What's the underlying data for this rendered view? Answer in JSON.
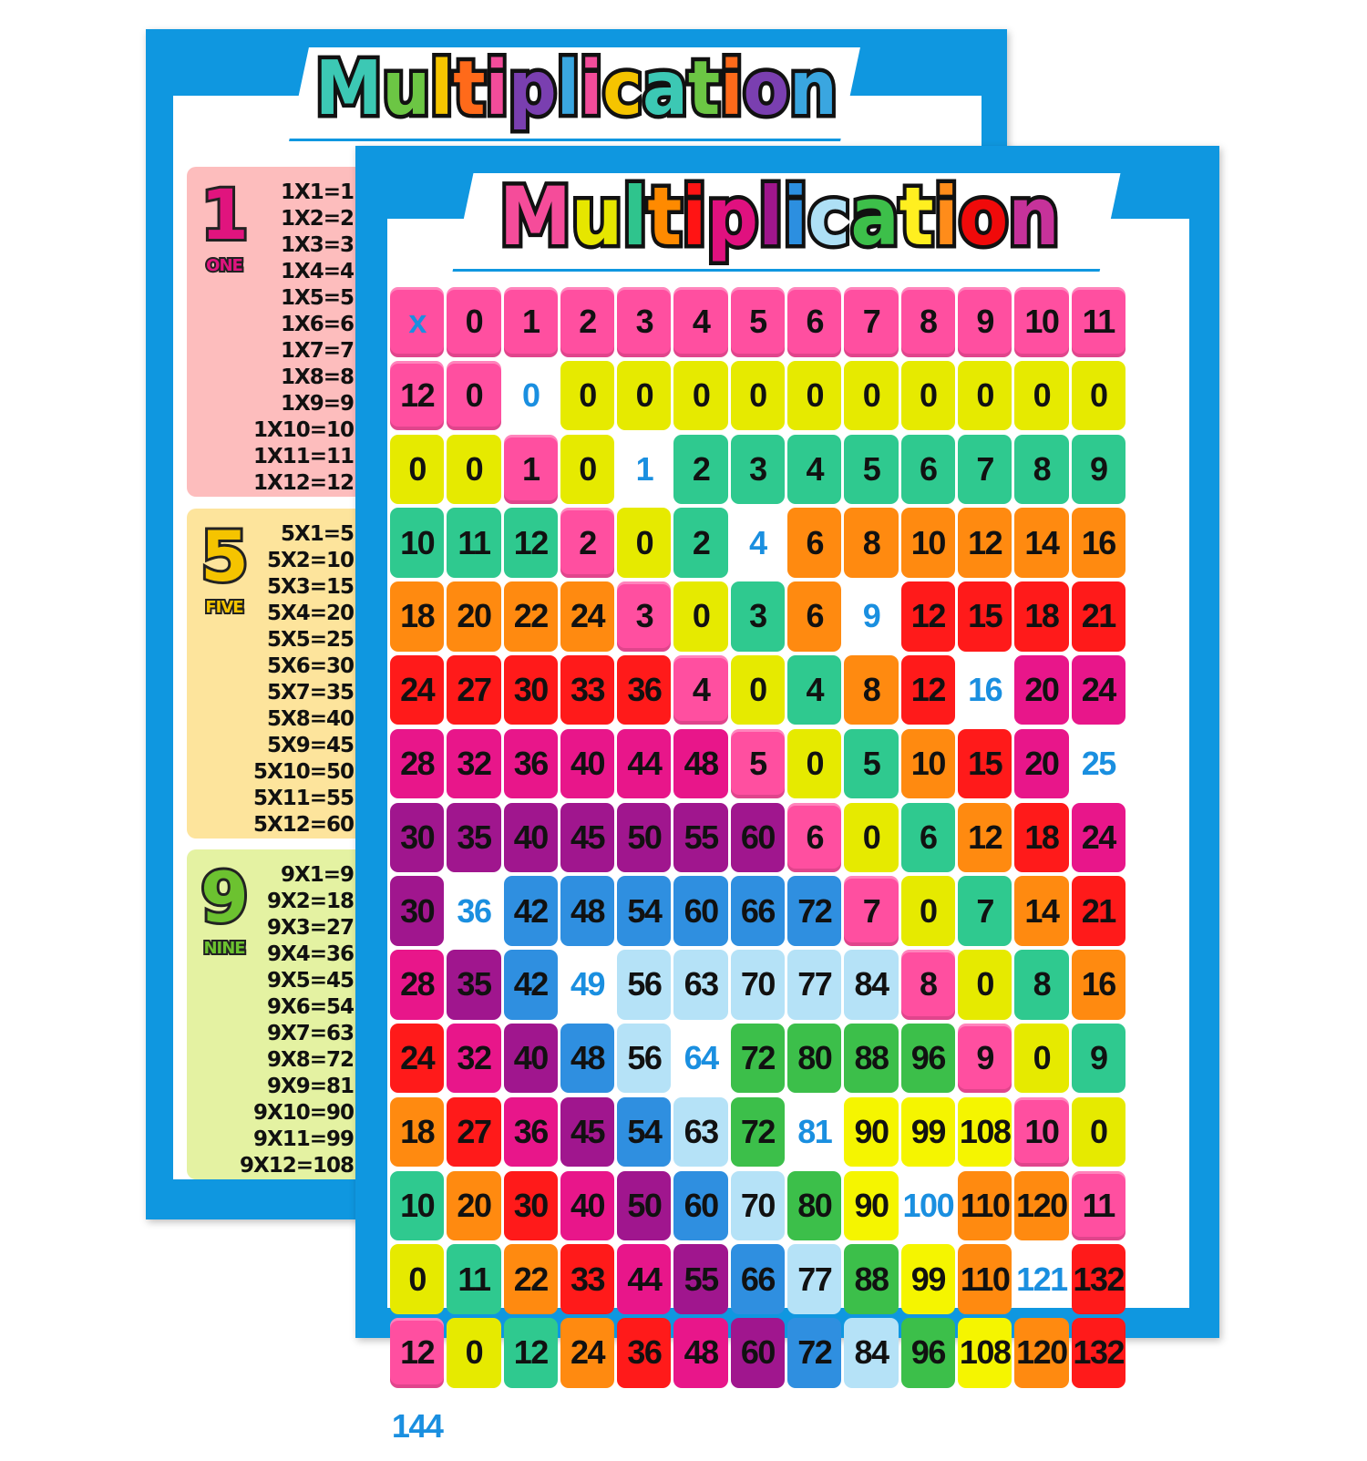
{
  "back_poster": {
    "title": "Multiplication",
    "title_colors": [
      "#3cc8b4",
      "#6cc644",
      "#f5c400",
      "#ff6a1a",
      "#f24c9a",
      "#7a3fb0",
      "#3aa6e0",
      "#f24c9a",
      "#f5c400",
      "#3cc8b4",
      "#6cc644",
      "#ff6a1a",
      "#7a3fb0",
      "#3aa6e0"
    ],
    "panels": [
      {
        "number": "1",
        "word": "ONE",
        "bg": "#fdbdbd",
        "color": "#e0147e",
        "equations": [
          "1X1=1",
          "1X2=2",
          "1X3=3",
          "1X4=4",
          "1X5=5",
          "1X6=6",
          "1X7=7",
          "1X8=8",
          "1X9=9",
          "1X10=10",
          "1X11=11",
          "1X12=12"
        ]
      },
      {
        "number": "5",
        "word": "FIVE",
        "bg": "#fde49c",
        "color": "#f5c400",
        "equations": [
          "5X1=5",
          "5X2=10",
          "5X3=15",
          "5X4=20",
          "5X5=25",
          "5X6=30",
          "5X7=35",
          "5X8=40",
          "5X9=45",
          "5X10=50",
          "5X11=55",
          "5X12=60"
        ]
      },
      {
        "number": "9",
        "word": "NINE",
        "bg": "#e4f2a2",
        "color": "#6cc230",
        "equations": [
          "9X1=9",
          "9X2=18",
          "9X3=27",
          "9X4=36",
          "9X5=45",
          "9X6=54",
          "9X7=63",
          "9X8=72",
          "9X9=81",
          "9X10=90",
          "9X11=99",
          "9X12=108"
        ]
      }
    ]
  },
  "front_poster": {
    "title": "Multiplication",
    "title_colors": [
      "#f54c9a",
      "#e6e600",
      "#2fc48d",
      "#ff8a00",
      "#ff1414",
      "#e0117f",
      "#a0168c",
      "#2c8fe0",
      "#aee0f5",
      "#3dbf4a",
      "#ffef20",
      "#ff8c1a",
      "#f00a0a",
      "#c6329a"
    ],
    "table": {
      "corner": "x",
      "header_color": "#ff4fa0",
      "corner_text_color": "#1a8fe0",
      "diagonal_text_color": "#1a8fe0",
      "tier_colors": [
        "#e6ea00",
        "#2fc98f",
        "#ff8a10",
        "#ff1a1a",
        "#e8168a",
        "#a0168e",
        "#2f8fe0",
        "#b5e2f7",
        "#3cbf4a",
        "#f5f500",
        "#ff8a10",
        "#ff1a1a"
      ],
      "column_headers": [
        "0",
        "1",
        "2",
        "3",
        "4",
        "5",
        "6",
        "7",
        "8",
        "9",
        "10",
        "11",
        "12"
      ],
      "rows": [
        {
          "header": "0",
          "values": [
            "0",
            "0",
            "0",
            "0",
            "0",
            "0",
            "0",
            "0",
            "0",
            "0",
            "0",
            "0",
            "0"
          ]
        },
        {
          "header": "1",
          "values": [
            "0",
            "1",
            "2",
            "3",
            "4",
            "5",
            "6",
            "7",
            "8",
            "9",
            "10",
            "11",
            "12"
          ]
        },
        {
          "header": "2",
          "values": [
            "0",
            "2",
            "4",
            "6",
            "8",
            "10",
            "12",
            "14",
            "16",
            "18",
            "20",
            "22",
            "24"
          ]
        },
        {
          "header": "3",
          "values": [
            "0",
            "3",
            "6",
            "9",
            "12",
            "15",
            "18",
            "21",
            "24",
            "27",
            "30",
            "33",
            "36"
          ]
        },
        {
          "header": "4",
          "values": [
            "0",
            "4",
            "8",
            "12",
            "16",
            "20",
            "24",
            "28",
            "32",
            "36",
            "40",
            "44",
            "48"
          ]
        },
        {
          "header": "5",
          "values": [
            "0",
            "5",
            "10",
            "15",
            "20",
            "25",
            "30",
            "35",
            "40",
            "45",
            "50",
            "55",
            "60"
          ]
        },
        {
          "header": "6",
          "values": [
            "0",
            "6",
            "12",
            "18",
            "24",
            "30",
            "36",
            "42",
            "48",
            "54",
            "60",
            "66",
            "72"
          ]
        },
        {
          "header": "7",
          "values": [
            "0",
            "7",
            "14",
            "21",
            "28",
            "35",
            "42",
            "49",
            "56",
            "63",
            "70",
            "77",
            "84"
          ]
        },
        {
          "header": "8",
          "values": [
            "0",
            "8",
            "16",
            "24",
            "32",
            "40",
            "48",
            "56",
            "64",
            "72",
            "80",
            "88",
            "96"
          ]
        },
        {
          "header": "9",
          "values": [
            "0",
            "9",
            "18",
            "27",
            "36",
            "45",
            "54",
            "63",
            "72",
            "81",
            "90",
            "99",
            "108"
          ]
        },
        {
          "header": "10",
          "values": [
            "0",
            "10",
            "20",
            "30",
            "40",
            "50",
            "60",
            "70",
            "80",
            "90",
            "100",
            "110",
            "120"
          ]
        },
        {
          "header": "11",
          "values": [
            "0",
            "11",
            "22",
            "33",
            "44",
            "55",
            "66",
            "77",
            "88",
            "99",
            "110",
            "121",
            "132"
          ]
        },
        {
          "header": "12",
          "values": [
            "0",
            "12",
            "24",
            "36",
            "48",
            "60",
            "72",
            "84",
            "96",
            "108",
            "120",
            "132",
            "144"
          ]
        }
      ]
    }
  }
}
